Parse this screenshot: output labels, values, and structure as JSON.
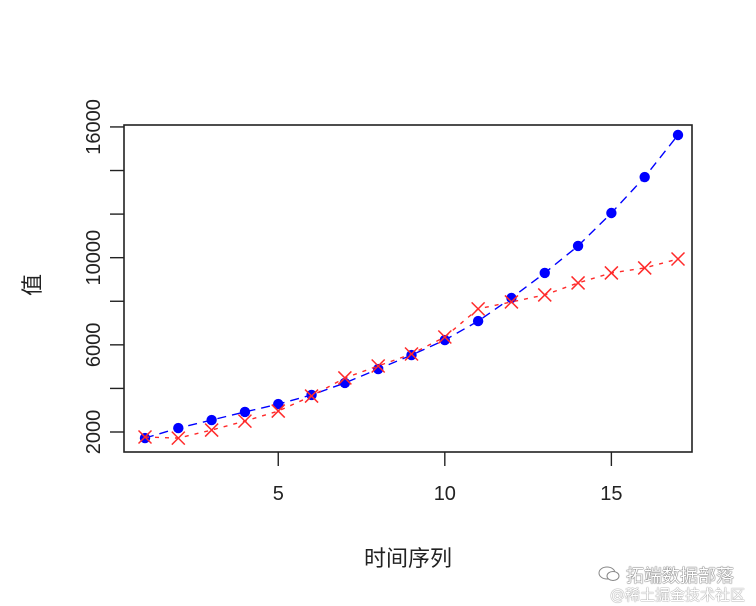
{
  "chart_data": {
    "type": "line",
    "title": "",
    "xlabel": "时间序列",
    "ylabel": "值",
    "x": [
      1,
      2,
      3,
      4,
      5,
      6,
      7,
      8,
      9,
      10,
      11,
      12,
      13,
      14,
      15,
      16,
      17
    ],
    "xticks": [
      5,
      10,
      15
    ],
    "yticks": [
      2000,
      4000,
      6000,
      8000,
      10000,
      12000,
      14000,
      16000
    ],
    "ytick_labels": [
      "2000",
      "",
      "6000",
      "",
      "10000",
      "",
      "",
      "16000"
    ],
    "xlim": [
      0.4,
      17.6
    ],
    "ylim": [
      1380,
      16280
    ],
    "grid": false,
    "legend": null,
    "series": [
      {
        "name": "blue-points",
        "color": "#0000ff",
        "marker": "filled-circle",
        "line_style": "long-dash",
        "values": [
          1720,
          2180,
          2550,
          2920,
          3280,
          3700,
          4250,
          4890,
          5530,
          6220,
          7090,
          8150,
          9300,
          10540,
          12050,
          13700,
          15630
        ]
      },
      {
        "name": "red-x",
        "color": "#ff2a2a",
        "marker": "x",
        "line_style": "short-dash",
        "values": [
          1770,
          1720,
          2090,
          2500,
          2960,
          3650,
          4480,
          5030,
          5580,
          6360,
          7650,
          7970,
          8290,
          8840,
          9300,
          9530,
          9940
        ]
      }
    ]
  },
  "watermark": {
    "line1": "拓端数据部落",
    "line2": "@稀土掘金技术社区"
  }
}
